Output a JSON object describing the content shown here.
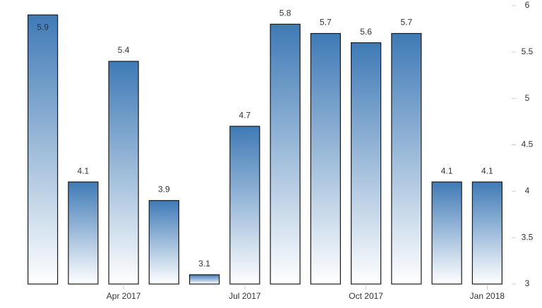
{
  "chart_data": {
    "type": "bar",
    "categories": [
      null,
      null,
      "Apr 2017",
      null,
      null,
      "Jul 2017",
      null,
      null,
      "Oct 2017",
      null,
      null,
      "Jan 2018"
    ],
    "values": [
      5.9,
      4.1,
      5.4,
      3.9,
      3.1,
      4.7,
      5.8,
      5.7,
      5.6,
      5.7,
      4.1,
      4.1
    ],
    "color": "#3f7ab6",
    "ylim": [
      3,
      6
    ],
    "yticks": [
      3,
      3.5,
      4,
      4.5,
      5,
      5.5,
      6
    ],
    "y_axis_side": "right"
  }
}
